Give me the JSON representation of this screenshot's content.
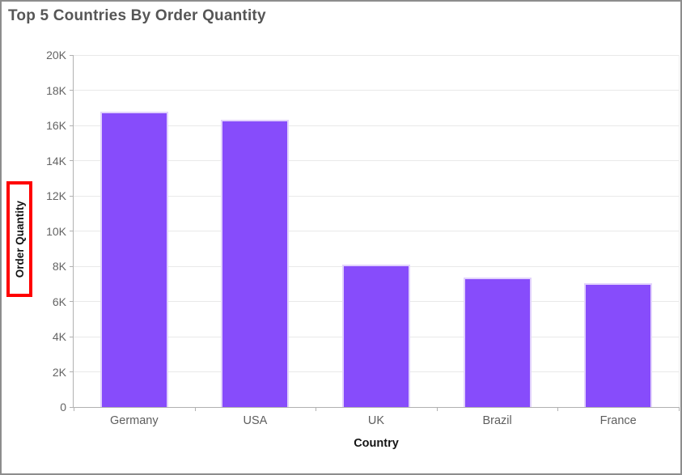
{
  "header": {
    "title": "Top 5 Countries By Order Quantity"
  },
  "chart_data": {
    "type": "bar",
    "title": "Top 5 Countries By Order Quantity",
    "categories": [
      "Germany",
      "USA",
      "UK",
      "Brazil",
      "France"
    ],
    "values": [
      16800,
      16300,
      8100,
      7350,
      7050
    ],
    "xlabel": "Country",
    "ylabel": "Order Quantity",
    "ylim": [
      0,
      20000
    ],
    "y_tick_interval": 2000,
    "y_tick_labels": [
      "0",
      "2K",
      "4K",
      "6K",
      "8K",
      "10K",
      "12K",
      "14K",
      "16K",
      "18K",
      "20K"
    ],
    "grid": "horizontal",
    "legend": "none",
    "bar_color": "#874cfb",
    "bar_border_color": "#e2d2fc"
  },
  "annotation": {
    "type": "highlight-box",
    "target": "y-axis-title",
    "color": "#ff0000"
  }
}
